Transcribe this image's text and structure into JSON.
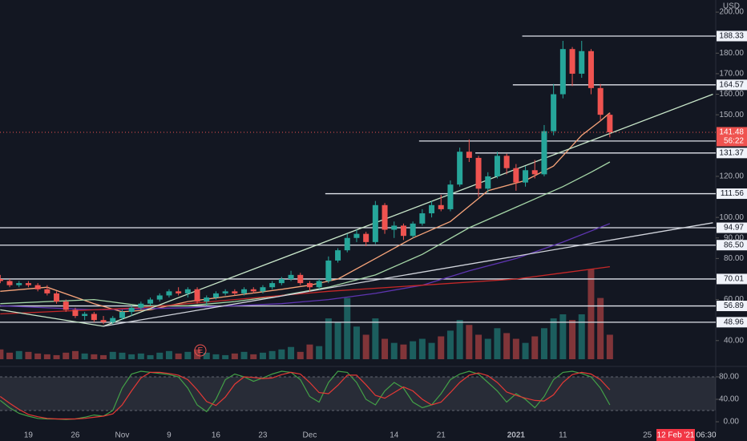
{
  "chart_data": [
    {
      "type": "candlestick",
      "currency": "USD",
      "categories": [
        null,
        null,
        null,
        "19",
        null,
        null,
        null,
        null,
        "26",
        null,
        null,
        null,
        null,
        "Nov",
        null,
        null,
        null,
        null,
        "9",
        null,
        null,
        null,
        null,
        "16",
        null,
        null,
        null,
        null,
        "23",
        null,
        null,
        null,
        null,
        "Dec",
        null,
        null,
        null,
        null,
        null,
        null,
        null,
        null,
        "14",
        null,
        null,
        null,
        null,
        "21",
        null,
        null,
        null,
        null,
        null,
        null,
        null,
        "2021",
        null,
        null,
        null,
        null,
        "11",
        null,
        null,
        null,
        null,
        null,
        null,
        null,
        null,
        "25"
      ],
      "open": [
        70,
        69,
        67,
        68,
        67,
        65,
        63,
        59,
        55,
        52,
        53,
        50,
        49,
        51,
        54,
        56,
        58,
        60,
        62,
        64,
        63,
        65,
        59,
        61,
        63,
        64,
        63,
        65,
        64,
        66,
        68,
        70,
        72,
        68,
        66,
        69,
        79,
        84,
        90,
        92,
        88,
        106,
        94,
        96,
        91,
        97,
        102,
        106,
        104,
        116,
        132,
        129,
        114,
        120,
        130,
        124,
        117,
        123,
        121,
        142,
        160,
        182,
        170,
        181,
        163,
        150,
        null,
        null,
        null,
        null
      ],
      "high": [
        72,
        70,
        69,
        69,
        68,
        67,
        64,
        60,
        56,
        54,
        54,
        52,
        52,
        55,
        57,
        59,
        61,
        63,
        65,
        66,
        66,
        66,
        62,
        64,
        65,
        65,
        66,
        66,
        67,
        69,
        71,
        74,
        73,
        69,
        70,
        81,
        85,
        92,
        94,
        93,
        108,
        107,
        98,
        97,
        98,
        104,
        108,
        111,
        118,
        134,
        138,
        130,
        122,
        132,
        131,
        126,
        125,
        128,
        145,
        165,
        186,
        183,
        186,
        182,
        165,
        151,
        null,
        null,
        null,
        null
      ],
      "low": [
        68,
        66,
        66,
        66,
        64,
        62,
        58,
        54,
        51,
        50,
        49,
        48,
        48,
        50,
        52,
        55,
        57,
        59,
        61,
        62,
        61,
        58,
        57,
        60,
        62,
        62,
        62,
        63,
        63,
        65,
        67,
        69,
        67,
        64,
        65,
        68,
        78,
        83,
        88,
        86,
        87,
        92,
        90,
        89,
        90,
        96,
        100,
        103,
        103,
        115,
        127,
        110,
        112,
        119,
        121,
        113,
        115,
        119,
        120,
        140,
        158,
        164,
        168,
        160,
        147,
        139,
        null,
        null,
        null,
        null
      ],
      "close": [
        69,
        67,
        68,
        67,
        65,
        63,
        59,
        55,
        52,
        53,
        50,
        49,
        51,
        54,
        56,
        58,
        60,
        62,
        64,
        63,
        65,
        59,
        61,
        63,
        64,
        63,
        65,
        64,
        66,
        68,
        70,
        72,
        68,
        66,
        69,
        79,
        84,
        90,
        92,
        88,
        106,
        94,
        96,
        91,
        97,
        102,
        106,
        104,
        116,
        132,
        129,
        114,
        120,
        130,
        124,
        117,
        123,
        121,
        142,
        160,
        182,
        170,
        181,
        163,
        150,
        141.48,
        null,
        null,
        null,
        null
      ],
      "volume": [
        12,
        8,
        10,
        9,
        7,
        6,
        5,
        8,
        10,
        7,
        6,
        5,
        9,
        8,
        6,
        7,
        5,
        8,
        10,
        7,
        9,
        12,
        8,
        6,
        5,
        7,
        9,
        6,
        8,
        10,
        12,
        15,
        9,
        18,
        16,
        50,
        45,
        75,
        40,
        30,
        50,
        25,
        20,
        18,
        22,
        25,
        20,
        28,
        35,
        48,
        42,
        30,
        25,
        38,
        32,
        25,
        20,
        28,
        38,
        50,
        55,
        48,
        55,
        110,
        75,
        30,
        null,
        null,
        null,
        null
      ],
      "up_color": "#26a69a",
      "down_color": "#ef5350",
      "countdown": "56:22",
      "earnings_marker": "E",
      "moving_averages": [
        {
          "color": "#f7a47a",
          "x": [
            0,
            5,
            10,
            13,
            16,
            20,
            25,
            30,
            33,
            36,
            40,
            44,
            48,
            52,
            56,
            59,
            62,
            64,
            65
          ],
          "values": [
            64,
            66,
            58,
            54,
            55,
            59,
            62,
            65,
            67,
            70,
            80,
            90,
            98,
            113,
            118,
            125,
            140,
            147,
            151
          ]
        },
        {
          "color": "#a5d6a7",
          "x": [
            0,
            10,
            15,
            20,
            25,
            30,
            35,
            40,
            45,
            50,
            55,
            60,
            63,
            65
          ],
          "values": [
            58,
            60,
            57,
            57,
            59,
            62,
            66,
            72,
            82,
            95,
            105,
            115,
            122,
            127
          ]
        },
        {
          "color": "#5e35b1",
          "x": [
            0,
            10,
            20,
            30,
            35,
            40,
            45,
            50,
            55,
            60,
            65
          ],
          "values": [
            57,
            55,
            56,
            58,
            60,
            63,
            67,
            74,
            80,
            88,
            97
          ]
        },
        {
          "color": "#c62828",
          "x": [
            0,
            15,
            25,
            35,
            45,
            55,
            60,
            65
          ],
          "values": [
            53,
            56,
            60,
            64,
            67,
            70,
            73,
            76
          ]
        }
      ],
      "trend_lines": [
        {
          "color": "#c8e6c9",
          "x": [
            11,
            76
          ],
          "values": [
            47,
            160
          ]
        },
        {
          "color": "#d1d4dc",
          "x": [
            11,
            76
          ],
          "values": [
            47,
            97.4
          ]
        },
        {
          "color": "#c8e6c9",
          "x": [
            0,
            11
          ],
          "values": [
            55,
            47
          ]
        }
      ],
      "levels": [
        188.33,
        164.57,
        137.21,
        131.37,
        111.56,
        94.97,
        {
          "value": 86.5,
          "label": "86.50"
        },
        70.01,
        56.89,
        48.96
      ],
      "ylim": [
        28.2,
        205.9
      ],
      "yticks": [
        {
          "value": 200,
          "label": "200.00"
        },
        {
          "value": 180,
          "label": "180.00"
        },
        {
          "value": 170,
          "label": "170.00"
        },
        {
          "value": 160,
          "label": "160.00"
        },
        {
          "value": 150,
          "label": "150.00"
        },
        {
          "value": 120,
          "label": "120.00"
        },
        {
          "value": 100,
          "label": "100.00"
        },
        {
          "value": 90,
          "label": "90.00"
        },
        {
          "value": 80,
          "label": "80.00"
        },
        {
          "value": 60,
          "label": "60.00"
        },
        {
          "value": 40,
          "label": "40.00"
        }
      ],
      "grid": false,
      "crosshair_date": "12 Feb '21",
      "crosshair_time": "06:30"
    },
    {
      "type": "line",
      "band": [
        20,
        80
      ],
      "series": [
        {
          "color": "#43a047",
          "values": [
            38,
            25,
            15,
            10,
            6,
            5,
            5,
            4,
            5,
            8,
            12,
            10,
            20,
            60,
            85,
            90,
            88,
            86,
            84,
            80,
            60,
            30,
            18,
            40,
            75,
            85,
            80,
            72,
            78,
            85,
            90,
            88,
            75,
            45,
            35,
            70,
            90,
            88,
            70,
            40,
            30,
            55,
            70,
            60,
            35,
            25,
            30,
            50,
            75,
            85,
            90,
            85,
            70,
            55,
            35,
            50,
            40,
            25,
            45,
            75,
            88,
            90,
            86,
            80,
            60,
            30,
            null,
            null,
            null,
            null
          ]
        },
        {
          "color": "#e53935",
          "values": [
            45,
            33,
            22,
            13,
            9,
            6,
            5,
            5,
            5,
            6,
            8,
            10,
            14,
            30,
            55,
            78,
            88,
            88,
            86,
            83,
            75,
            57,
            36,
            29,
            44,
            67,
            80,
            79,
            77,
            78,
            84,
            88,
            85,
            70,
            52,
            50,
            65,
            83,
            83,
            66,
            47,
            42,
            52,
            62,
            55,
            40,
            30,
            35,
            52,
            70,
            83,
            87,
            82,
            70,
            53,
            47,
            42,
            38,
            37,
            48,
            70,
            84,
            88,
            85,
            75,
            57,
            null,
            null,
            null,
            null
          ]
        }
      ],
      "ylim": [
        -20,
        94.3
      ],
      "yticks": [
        {
          "value": 80,
          "label": "80.00"
        },
        {
          "value": 40,
          "label": "40.00"
        },
        {
          "value": 0,
          "label": "0.00"
        }
      ]
    }
  ]
}
